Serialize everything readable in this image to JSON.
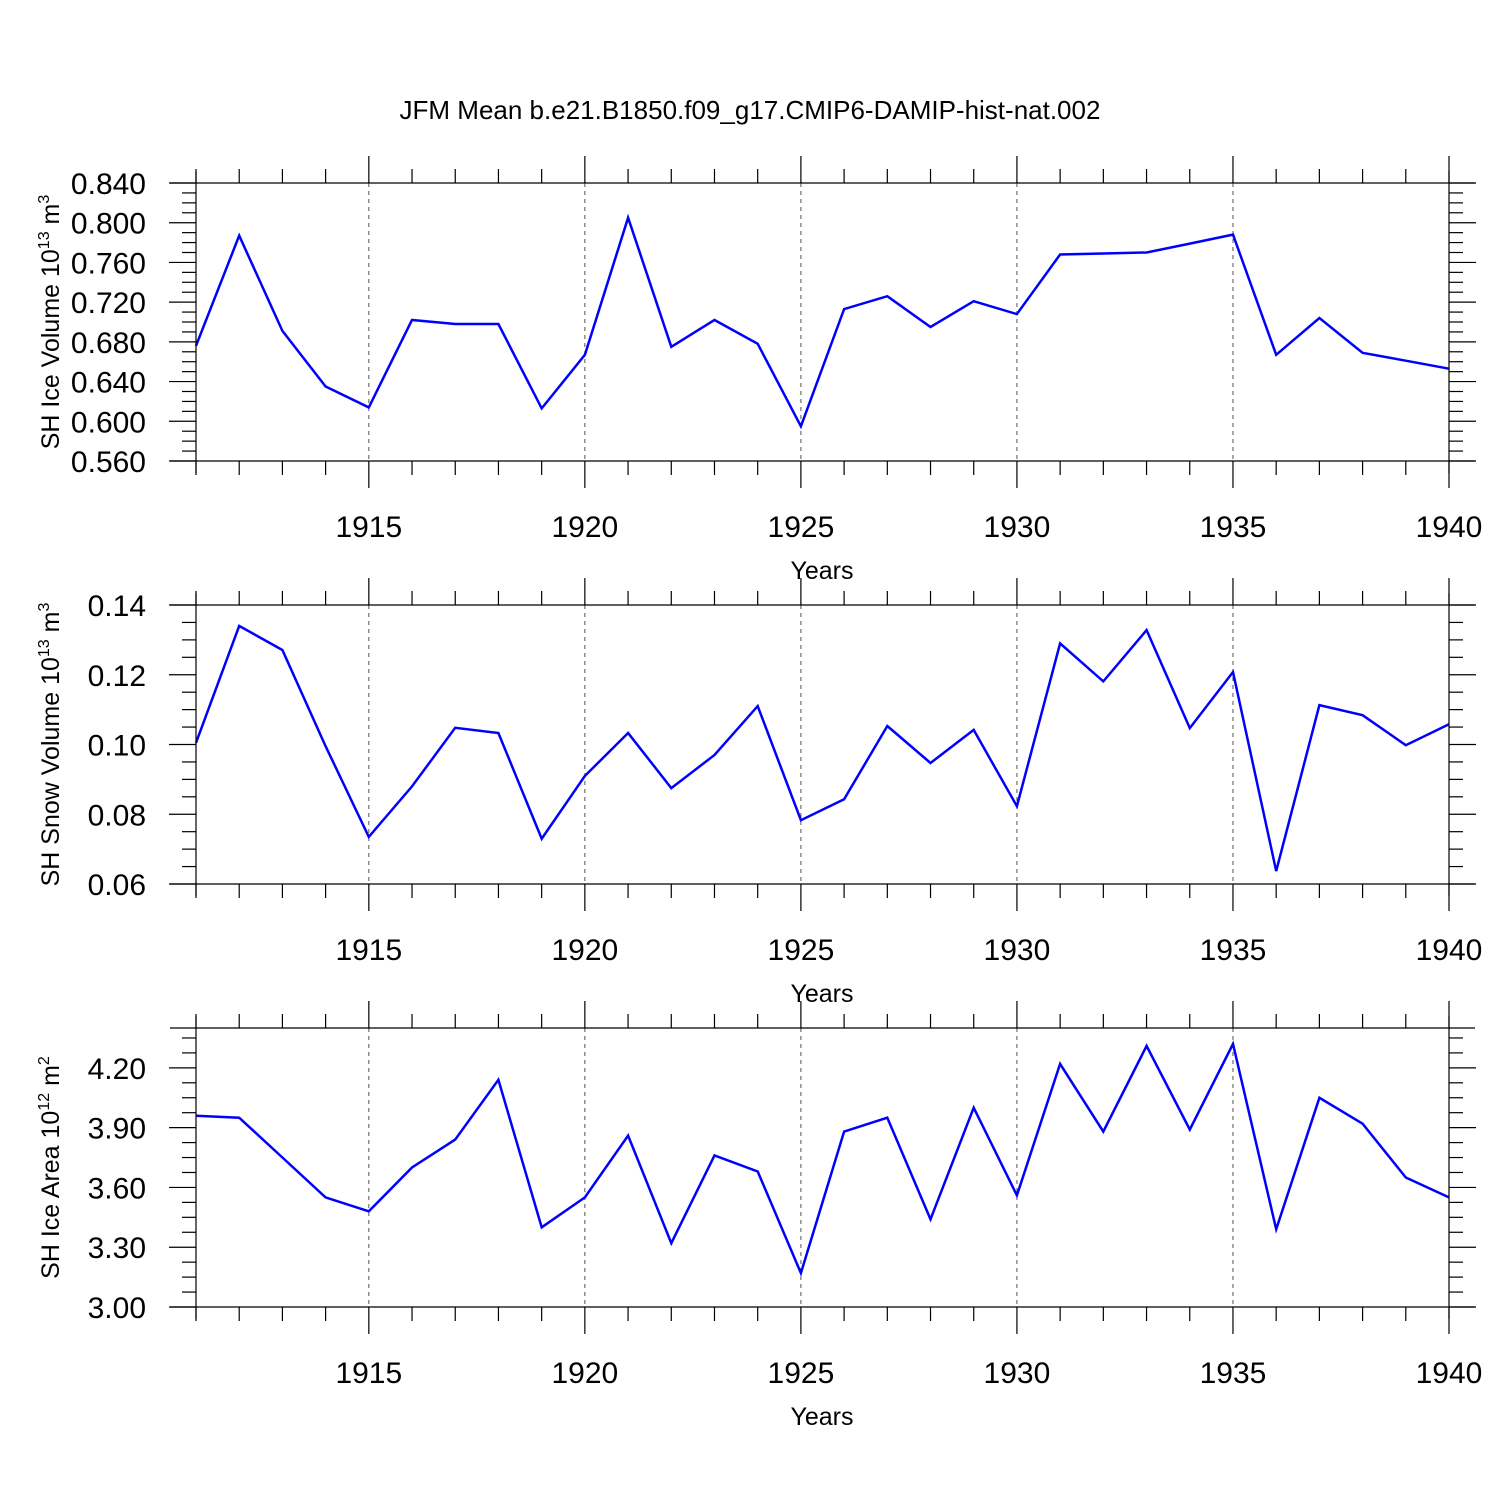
{
  "title": "JFM Mean b.e21.B1850.f09_g17.CMIP6-DAMIP-hist-nat.002",
  "colors": {
    "line": "#0000ff",
    "axis": "#000000",
    "grid": "#555555"
  },
  "chart_data": [
    {
      "type": "line",
      "name": "ice-volume",
      "ylabel": {
        "base": "SH Ice Volume 10",
        "exp": "13",
        "unit": " m",
        "unit_exp": "3"
      },
      "xlabel": "Years",
      "xlim": [
        1911,
        1940
      ],
      "ylim": [
        0.56,
        0.84
      ],
      "yticks": [
        "0.560",
        "0.600",
        "0.640",
        "0.680",
        "0.720",
        "0.760",
        "0.800",
        "0.840"
      ],
      "xticks": [
        "1915",
        "1920",
        "1925",
        "1930",
        "1935",
        "1940"
      ],
      "x": [
        1911,
        1912,
        1913,
        1914,
        1915,
        1916,
        1917,
        1918,
        1919,
        1920,
        1921,
        1922,
        1923,
        1924,
        1925,
        1926,
        1927,
        1928,
        1929,
        1930,
        1931,
        1932,
        1933,
        1934,
        1935,
        1936,
        1937,
        1938,
        1939,
        1940
      ],
      "values": [
        0.676,
        0.787,
        0.691,
        0.635,
        0.614,
        0.702,
        0.698,
        0.698,
        0.613,
        0.667,
        0.805,
        0.675,
        0.702,
        0.678,
        0.595,
        0.713,
        0.726,
        0.695,
        0.721,
        0.708,
        0.768,
        0.769,
        0.77,
        0.779,
        0.788,
        0.667,
        0.704,
        0.669,
        0.661,
        0.653
      ]
    },
    {
      "type": "line",
      "name": "snow-volume",
      "ylabel": {
        "base": "SH Snow Volume 10",
        "exp": "13",
        "unit": " m",
        "unit_exp": "3"
      },
      "xlabel": "Years",
      "xlim": [
        1911,
        1940
      ],
      "ylim": [
        0.06,
        0.14
      ],
      "yticks": [
        "0.06",
        "0.08",
        "0.10",
        "0.12",
        "0.14"
      ],
      "xticks": [
        "1915",
        "1920",
        "1925",
        "1930",
        "1935",
        "1940"
      ],
      "x": [
        1911,
        1912,
        1913,
        1914,
        1915,
        1916,
        1917,
        1918,
        1919,
        1920,
        1921,
        1922,
        1923,
        1924,
        1925,
        1926,
        1927,
        1928,
        1929,
        1930,
        1931,
        1932,
        1933,
        1934,
        1935,
        1936,
        1937,
        1938,
        1939,
        1940
      ],
      "values": [
        0.1005,
        0.134,
        0.1271,
        0.0995,
        0.0735,
        0.088,
        0.1048,
        0.1033,
        0.073,
        0.091,
        0.1033,
        0.0875,
        0.097,
        0.111,
        0.0783,
        0.0843,
        0.1053,
        0.0947,
        0.1042,
        0.0823,
        0.129,
        0.1181,
        0.1328,
        0.1047,
        0.1208,
        0.0637,
        0.1113,
        0.1084,
        0.0998,
        0.1058
      ]
    },
    {
      "type": "line",
      "name": "ice-area",
      "ylabel": {
        "base": "SH Ice Area 10",
        "exp": "12",
        "unit": " m",
        "unit_exp": "2"
      },
      "xlabel": "Years",
      "xlim": [
        1911,
        1940
      ],
      "ylim": [
        3.0,
        4.4
      ],
      "yticks": [
        "3.00",
        "3.30",
        "3.60",
        "3.90",
        "4.20"
      ],
      "xticks": [
        "1915",
        "1920",
        "1925",
        "1930",
        "1935",
        "1940"
      ],
      "x": [
        1911,
        1912,
        1913,
        1914,
        1915,
        1916,
        1917,
        1918,
        1919,
        1920,
        1921,
        1922,
        1923,
        1924,
        1925,
        1926,
        1927,
        1928,
        1929,
        1930,
        1931,
        1932,
        1933,
        1934,
        1935,
        1936,
        1937,
        1938,
        1939,
        1940
      ],
      "values": [
        3.96,
        3.95,
        3.75,
        3.55,
        3.48,
        3.7,
        3.84,
        4.14,
        3.4,
        3.55,
        3.86,
        3.32,
        3.76,
        3.68,
        3.17,
        3.88,
        3.95,
        3.44,
        4.0,
        3.56,
        4.22,
        3.88,
        4.31,
        3.89,
        4.32,
        3.39,
        4.05,
        3.92,
        3.65,
        3.55
      ]
    }
  ]
}
